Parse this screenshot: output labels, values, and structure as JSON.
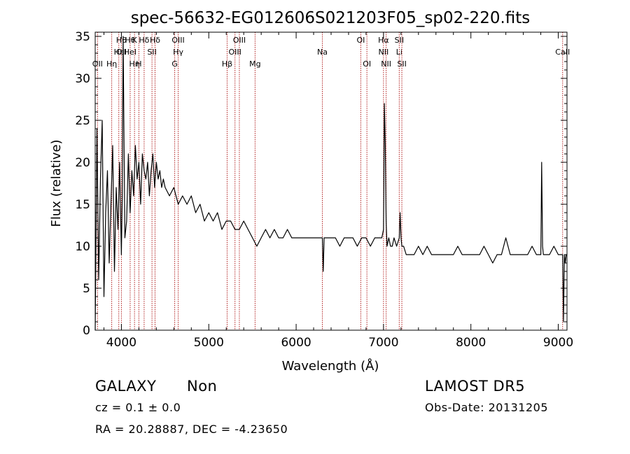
{
  "chart_data": {
    "type": "line",
    "title": "spec-56632-EG012606S021203F05_sp02-220.fits",
    "xlabel": "Wavelength (Å)",
    "ylabel": "Flux (relative)",
    "xlim": [
      3700,
      9100
    ],
    "ylim": [
      0,
      35.5
    ],
    "xticks": [
      4000,
      5000,
      6000,
      7000,
      8000,
      9000
    ],
    "yticks": [
      0,
      5,
      10,
      15,
      20,
      25,
      30,
      35
    ],
    "grid": false,
    "line_color": "#000000",
    "marker_color": "#b22222",
    "series": [
      {
        "x": [
          3700,
          3720,
          3740,
          3760,
          3780,
          3800,
          3820,
          3840,
          3860,
          3880,
          3900,
          3920,
          3940,
          3960,
          3980,
          4000,
          4010,
          4020,
          4040,
          4060,
          4080,
          4100,
          4120,
          4140,
          4160,
          4180,
          4200,
          4220,
          4240,
          4260,
          4280,
          4300,
          4320,
          4340,
          4360,
          4380,
          4400,
          4420,
          4440,
          4460,
          4480,
          4500,
          4550,
          4600,
          4650,
          4700,
          4750,
          4800,
          4850,
          4900,
          4950,
          5000,
          5050,
          5100,
          5150,
          5200,
          5250,
          5300,
          5350,
          5400,
          5450,
          5500,
          5550,
          5600,
          5650,
          5700,
          5750,
          5800,
          5850,
          5900,
          5950,
          6000,
          6050,
          6100,
          6150,
          6200,
          6250,
          6300,
          6310,
          6320,
          6350,
          6400,
          6450,
          6500,
          6550,
          6600,
          6650,
          6700,
          6750,
          6800,
          6850,
          6900,
          6950,
          6980,
          7000,
          7010,
          7020,
          7030,
          7040,
          7060,
          7080,
          7100,
          7120,
          7150,
          7180,
          7190,
          7200,
          7210,
          7230,
          7260,
          7300,
          7350,
          7400,
          7450,
          7500,
          7550,
          7600,
          7650,
          7700,
          7750,
          7800,
          7850,
          7900,
          7950,
          8000,
          8050,
          8100,
          8150,
          8200,
          8250,
          8300,
          8350,
          8400,
          8450,
          8500,
          8550,
          8600,
          8650,
          8700,
          8750,
          8800,
          8810,
          8820,
          8830,
          8850,
          8900,
          8950,
          9000,
          9050,
          9060,
          9070,
          9080,
          9090,
          9100
        ],
        "y": [
          0,
          24,
          6,
          18,
          25,
          4,
          14,
          19,
          8,
          15,
          22,
          7,
          17,
          12,
          20,
          9,
          16,
          35,
          11,
          13,
          21,
          14,
          19,
          16,
          22,
          18,
          20,
          15,
          21,
          19,
          18,
          20,
          16,
          19,
          21,
          17,
          20,
          18,
          19,
          17,
          18,
          17,
          16,
          17,
          15,
          16,
          15,
          16,
          14,
          15,
          13,
          14,
          13,
          14,
          12,
          13,
          13,
          12,
          12,
          13,
          12,
          11,
          10,
          11,
          12,
          11,
          12,
          11,
          11,
          12,
          11,
          11,
          11,
          11,
          11,
          11,
          11,
          11,
          7,
          11,
          11,
          11,
          11,
          10,
          11,
          11,
          11,
          10,
          11,
          11,
          10,
          11,
          11,
          11,
          12,
          27,
          22,
          13,
          10,
          11,
          10,
          10,
          11,
          10,
          11,
          14,
          11,
          10,
          10,
          9,
          9,
          9,
          10,
          9,
          10,
          9,
          9,
          9,
          9,
          9,
          9,
          10,
          9,
          9,
          9,
          9,
          9,
          10,
          9,
          8,
          9,
          9,
          11,
          9,
          9,
          9,
          9,
          9,
          10,
          9,
          9,
          20,
          10,
          9,
          9,
          9,
          10,
          9,
          9,
          1,
          9,
          8,
          9,
          9
        ]
      }
    ],
    "lines": [
      {
        "x": 3727,
        "labels": [
          "OII"
        ],
        "rows": [
          2
        ]
      },
      {
        "x": 3889,
        "labels": [
          "Hη"
        ],
        "rows": [
          2
        ]
      },
      {
        "x": 3970,
        "labels": [
          "Hε"
        ],
        "rows": [
          1
        ]
      },
      {
        "x": 4000,
        "labels": [
          "Hθ",
          "OII"
        ],
        "rows": [
          0,
          1
        ]
      },
      {
        "x": 4100,
        "labels": [
          "Hθ",
          "HeI"
        ],
        "rows": [
          0,
          1
        ]
      },
      {
        "x": 4150,
        "labels": [
          "K",
          "Hη"
        ],
        "rows": [
          0,
          2
        ]
      },
      {
        "x": 4200,
        "labels": [
          "H"
        ],
        "rows": [
          2
        ]
      },
      {
        "x": 4260,
        "labels": [
          "Hδ"
        ],
        "rows": [
          0
        ]
      },
      {
        "x": 4350,
        "labels": [
          "SII"
        ],
        "rows": [
          1
        ]
      },
      {
        "x": 4385,
        "labels": [
          "Hδ"
        ],
        "rows": [
          0
        ]
      },
      {
        "x": 4610,
        "labels": [
          "G"
        ],
        "rows": [
          2
        ]
      },
      {
        "x": 4650,
        "labels": [
          "OIII",
          "Hγ"
        ],
        "rows": [
          0,
          1
        ]
      },
      {
        "x": 5210,
        "labels": [
          "Hβ"
        ],
        "rows": [
          2
        ]
      },
      {
        "x": 5300,
        "labels": [
          "OIII"
        ],
        "rows": [
          1
        ]
      },
      {
        "x": 5350,
        "labels": [
          "OIII"
        ],
        "rows": [
          0
        ]
      },
      {
        "x": 5530,
        "labels": [
          "Mg"
        ],
        "rows": [
          2
        ]
      },
      {
        "x": 6300,
        "labels": [
          "Na"
        ],
        "rows": [
          1
        ]
      },
      {
        "x": 6740,
        "labels": [
          "OI"
        ],
        "rows": [
          0
        ]
      },
      {
        "x": 6810,
        "labels": [
          "OI"
        ],
        "rows": [
          2
        ]
      },
      {
        "x": 7000,
        "labels": [
          "Hα",
          "NII"
        ],
        "rows": [
          0,
          1
        ]
      },
      {
        "x": 7030,
        "labels": [
          "NII"
        ],
        "rows": [
          2
        ]
      },
      {
        "x": 7180,
        "labels": [
          "SII",
          "Li"
        ],
        "rows": [
          0,
          1
        ]
      },
      {
        "x": 7210,
        "labels": [
          "SII"
        ],
        "rows": [
          2
        ]
      },
      {
        "x": 9050,
        "labels": [
          "CaII"
        ],
        "rows": [
          1
        ]
      }
    ]
  },
  "info": {
    "class": "GALAXY",
    "subclass": "Non",
    "survey": "LAMOST  DR5",
    "cz": "cz = 0.1 ± 0.0",
    "obs_date": "Obs-Date: 20131205",
    "coords": "RA =  20.28887, DEC =  -4.23650"
  }
}
